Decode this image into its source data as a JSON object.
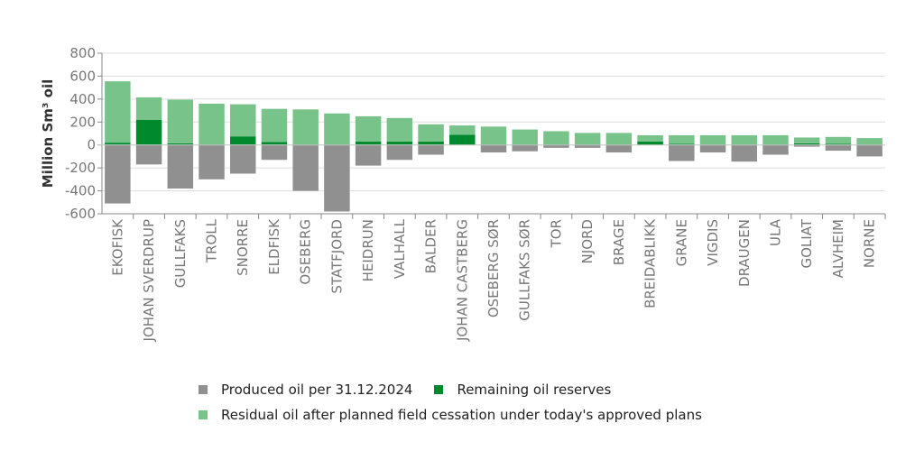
{
  "chart_data": {
    "type": "bar",
    "stacked": true,
    "title": "",
    "xlabel": "",
    "ylabel": "Million Sm³ oil",
    "ylim": [
      -600,
      800
    ],
    "yticks": [
      -600,
      -400,
      -200,
      0,
      200,
      400,
      600,
      800
    ],
    "grid": true,
    "legend_position": "bottom",
    "categories": [
      "EKOFISK",
      "JOHAN SVERDRUP",
      "GULLFAKS",
      "TROLL",
      "SNORRE",
      "ELDFISK",
      "OSEBERG",
      "STATFJORD",
      "HEIDRUN",
      "VALHALL",
      "BALDER",
      "JOHAN CASTBERG",
      "OSEBERG SØR",
      "GULLFAKS SØR",
      "TOR",
      "NJORD",
      "BRAGE",
      "BREIDABLIKK",
      "GRANE",
      "VIGDIS",
      "DRAUGEN",
      "ULA",
      "GOLIAT",
      "ALVHEIM",
      "NORNE"
    ],
    "series": [
      {
        "name": "Produced oil per 31.12.2024",
        "color": "#909090",
        "values": [
          -510,
          -170,
          -380,
          -300,
          -250,
          -130,
          -400,
          -580,
          -180,
          -130,
          -85,
          0,
          -65,
          -55,
          -25,
          -25,
          -65,
          0,
          -140,
          -65,
          -145,
          -85,
          -15,
          -50,
          -100
        ]
      },
      {
        "name": "Remaining oil reserves",
        "color": "#008a2e",
        "values": [
          20,
          220,
          15,
          5,
          75,
          25,
          5,
          5,
          30,
          30,
          30,
          90,
          5,
          5,
          5,
          5,
          5,
          30,
          10,
          5,
          5,
          5,
          15,
          10,
          5
        ]
      },
      {
        "name": "Residual oil after planned field cessation under today's approved plans",
        "color": "#78c389",
        "values": [
          535,
          195,
          380,
          355,
          280,
          290,
          305,
          270,
          220,
          205,
          150,
          80,
          155,
          130,
          115,
          100,
          100,
          55,
          75,
          80,
          80,
          80,
          50,
          60,
          55
        ]
      }
    ]
  }
}
